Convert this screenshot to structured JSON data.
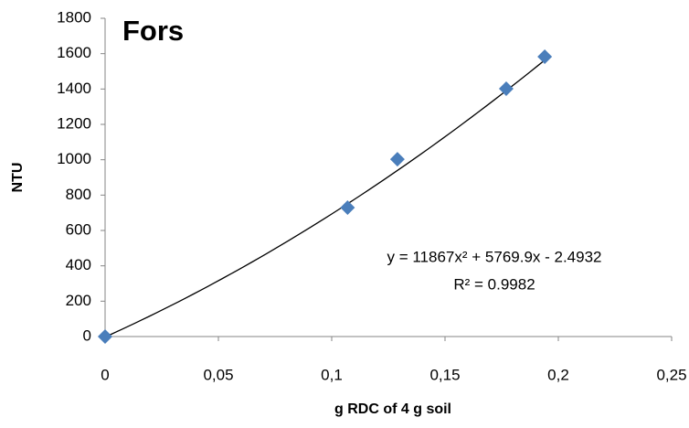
{
  "chart_data": {
    "type": "scatter",
    "title": "Fors",
    "x_label": "g RDC of 4 g soil",
    "y_label": "NTU",
    "x": [
      0,
      0.107,
      0.129,
      0.177,
      0.194
    ],
    "values": [
      0,
      729,
      1003,
      1402,
      1583
    ],
    "color": "#4a7ebb",
    "xlim": [
      0,
      0.25
    ],
    "xticks": [
      0,
      {
        "value": 0.05,
        "label": "0,05"
      },
      {
        "value": 0.1,
        "label": "0,1"
      },
      {
        "value": 0.15,
        "label": "0,15"
      },
      {
        "value": 0.2,
        "label": "0,2"
      },
      {
        "value": 0.25,
        "label": "0,25"
      }
    ],
    "ylim": [
      0,
      1800
    ],
    "yticks": [
      0,
      200,
      400,
      600,
      800,
      1000,
      1200,
      1400,
      1600,
      1800
    ],
    "grid": false,
    "trendline": {
      "equation": "y = 11867x² + 5769.9x - 2.4932",
      "r_squared_label": "R² = 0.9982",
      "coefficients": [
        11867,
        5769.9,
        -2.4932
      ]
    }
  }
}
